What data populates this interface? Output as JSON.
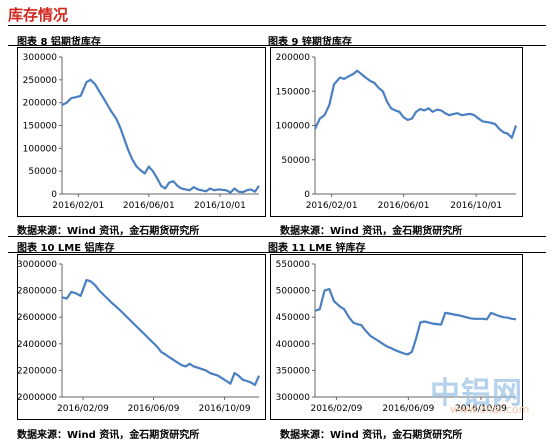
{
  "section_title": "库存情况",
  "figures": [
    {
      "title": "图表 8 铝期货库存",
      "source": "数据来源：Wind 资讯，金石期货研究所",
      "chart_data": {
        "type": "line",
        "series": [
          {
            "x": [
              "2016-01-04",
              "2016-01-12",
              "2016-01-20",
              "2016-01-28",
              "2016-02-05",
              "2016-02-15",
              "2016-02-22",
              "2016-03-01",
              "2016-03-08",
              "2016-03-15",
              "2016-03-22",
              "2016-03-29",
              "2016-04-06",
              "2016-04-13",
              "2016-04-20",
              "2016-04-27",
              "2016-05-04",
              "2016-05-11",
              "2016-05-18",
              "2016-05-25",
              "2016-06-01",
              "2016-06-08",
              "2016-06-15",
              "2016-06-22",
              "2016-06-29",
              "2016-07-06",
              "2016-07-13",
              "2016-07-20",
              "2016-07-27",
              "2016-08-03",
              "2016-08-10",
              "2016-08-17",
              "2016-08-24",
              "2016-08-31",
              "2016-09-07",
              "2016-09-14",
              "2016-09-21",
              "2016-09-28",
              "2016-10-05",
              "2016-10-12",
              "2016-10-19",
              "2016-10-26",
              "2016-11-02",
              "2016-11-09",
              "2016-11-16",
              "2016-11-23",
              "2016-11-30",
              "2016-12-07"
            ],
            "values": [
              195000,
              200000,
              210000,
              212000,
              215000,
              245000,
              250000,
              240000,
              225000,
              210000,
              195000,
              180000,
              165000,
              145000,
              120000,
              95000,
              75000,
              60000,
              52000,
              45000,
              60000,
              50000,
              35000,
              18000,
              12000,
              25000,
              28000,
              18000,
              12000,
              10000,
              8000,
              15000,
              10000,
              8000,
              6000,
              12000,
              8000,
              10000,
              9000,
              8000,
              3000,
              12000,
              5000,
              4000,
              8000,
              10000,
              5000,
              18000
            ]
          }
        ],
        "ylim": [
          0,
          300000
        ],
        "yticks": [
          "0",
          "50000",
          "100000",
          "150000",
          "200000",
          "250000",
          "300000"
        ],
        "xtick_labels": [
          "2016/02/01",
          "2016/06/01",
          "2016/10/01"
        ],
        "xtick_dates": [
          "2016-02-01",
          "2016-06-01",
          "2016-10-01"
        ],
        "xlim": [
          "2016-01-04",
          "2016-12-07"
        ],
        "color": "#4a7fc1"
      }
    },
    {
      "title": "图表 9 锌期货库存",
      "source": "数据来源：Wind 资讯，金石期货研究所",
      "chart_data": {
        "type": "line",
        "series": [
          {
            "x": [
              "2016-01-04",
              "2016-01-12",
              "2016-01-20",
              "2016-01-28",
              "2016-02-05",
              "2016-02-15",
              "2016-02-22",
              "2016-03-01",
              "2016-03-08",
              "2016-03-15",
              "2016-03-22",
              "2016-03-29",
              "2016-04-06",
              "2016-04-13",
              "2016-04-20",
              "2016-04-27",
              "2016-05-04",
              "2016-05-11",
              "2016-05-18",
              "2016-05-25",
              "2016-06-01",
              "2016-06-08",
              "2016-06-15",
              "2016-06-22",
              "2016-06-29",
              "2016-07-06",
              "2016-07-13",
              "2016-07-20",
              "2016-07-27",
              "2016-08-03",
              "2016-08-10",
              "2016-08-17",
              "2016-08-24",
              "2016-08-31",
              "2016-09-07",
              "2016-09-14",
              "2016-09-21",
              "2016-09-28",
              "2016-10-05",
              "2016-10-12",
              "2016-10-19",
              "2016-10-26",
              "2016-11-02",
              "2016-11-09",
              "2016-11-16",
              "2016-11-23",
              "2016-11-30",
              "2016-12-07"
            ],
            "values": [
              95000,
              110000,
              115000,
              130000,
              160000,
              170000,
              168000,
              172000,
              175000,
              180000,
              175000,
              170000,
              165000,
              162000,
              155000,
              150000,
              135000,
              125000,
              122000,
              120000,
              112000,
              108000,
              110000,
              120000,
              124000,
              122000,
              125000,
              120000,
              123000,
              122000,
              118000,
              115000,
              117000,
              118000,
              115000,
              116000,
              117000,
              115000,
              110000,
              106000,
              105000,
              104000,
              102000,
              95000,
              90000,
              88000,
              82000,
              100000
            ]
          }
        ],
        "ylim": [
          0,
          200000
        ],
        "yticks": [
          "0",
          "50000",
          "100000",
          "150000",
          "200000"
        ],
        "xtick_labels": [
          "2016/02/01",
          "2016/06/01",
          "2016/10/01"
        ],
        "xtick_dates": [
          "2016-02-01",
          "2016-06-01",
          "2016-10-01"
        ],
        "xlim": [
          "2016-01-04",
          "2016-12-07"
        ],
        "color": "#4a7fc1"
      }
    },
    {
      "title": "图表 10 LME 铝库存",
      "source": "数据来源：Wind 资讯，金石期货研究所",
      "chart_data": {
        "type": "line",
        "series": [
          {
            "x": [
              "2016-01-04",
              "2016-01-12",
              "2016-01-20",
              "2016-01-28",
              "2016-02-05",
              "2016-02-15",
              "2016-02-22",
              "2016-03-01",
              "2016-03-08",
              "2016-03-15",
              "2016-03-22",
              "2016-03-29",
              "2016-04-06",
              "2016-04-13",
              "2016-04-20",
              "2016-04-27",
              "2016-05-04",
              "2016-05-11",
              "2016-05-18",
              "2016-05-25",
              "2016-06-01",
              "2016-06-08",
              "2016-06-15",
              "2016-06-22",
              "2016-06-29",
              "2016-07-06",
              "2016-07-13",
              "2016-07-20",
              "2016-07-27",
              "2016-08-03",
              "2016-08-10",
              "2016-08-17",
              "2016-08-24",
              "2016-08-31",
              "2016-09-07",
              "2016-09-14",
              "2016-09-21",
              "2016-09-28",
              "2016-10-05",
              "2016-10-12",
              "2016-10-19",
              "2016-10-26",
              "2016-11-02",
              "2016-11-09",
              "2016-11-16",
              "2016-11-23",
              "2016-11-30",
              "2016-12-07"
            ],
            "values": [
              2750000,
              2740000,
              2790000,
              2780000,
              2760000,
              2880000,
              2870000,
              2840000,
              2800000,
              2770000,
              2740000,
              2710000,
              2680000,
              2650000,
              2620000,
              2590000,
              2560000,
              2530000,
              2500000,
              2470000,
              2440000,
              2410000,
              2380000,
              2340000,
              2320000,
              2300000,
              2280000,
              2260000,
              2240000,
              2230000,
              2250000,
              2230000,
              2220000,
              2210000,
              2200000,
              2180000,
              2170000,
              2160000,
              2140000,
              2120000,
              2100000,
              2180000,
              2160000,
              2130000,
              2120000,
              2110000,
              2090000,
              2160000
            ]
          }
        ],
        "ylim": [
          2000000,
          3000000
        ],
        "yticks": [
          "2000000",
          "2200000",
          "2400000",
          "2600000",
          "2800000",
          "3000000"
        ],
        "xtick_labels": [
          "2016/02/09",
          "2016/06/09",
          "2016/10/09"
        ],
        "xtick_dates": [
          "2016-02-09",
          "2016-06-09",
          "2016-10-09"
        ],
        "xlim": [
          "2016-01-04",
          "2016-12-07"
        ],
        "color": "#4a7fc1"
      }
    },
    {
      "title": "图表 11 LME 锌库存",
      "source": "数据来源：Wind 资讯，金石期货研究所",
      "chart_data": {
        "type": "line",
        "series": [
          {
            "x": [
              "2016-01-04",
              "2016-01-12",
              "2016-01-20",
              "2016-01-28",
              "2016-02-05",
              "2016-02-15",
              "2016-02-22",
              "2016-03-01",
              "2016-03-08",
              "2016-03-15",
              "2016-03-22",
              "2016-03-29",
              "2016-04-06",
              "2016-04-13",
              "2016-04-20",
              "2016-04-27",
              "2016-05-04",
              "2016-05-11",
              "2016-05-18",
              "2016-05-25",
              "2016-06-01",
              "2016-06-08",
              "2016-06-15",
              "2016-06-22",
              "2016-06-29",
              "2016-07-06",
              "2016-07-13",
              "2016-07-20",
              "2016-07-27",
              "2016-08-03",
              "2016-08-10",
              "2016-08-17",
              "2016-08-24",
              "2016-08-31",
              "2016-09-07",
              "2016-09-14",
              "2016-09-21",
              "2016-09-28",
              "2016-10-05",
              "2016-10-12",
              "2016-10-19",
              "2016-10-26",
              "2016-11-02",
              "2016-11-09",
              "2016-11-16",
              "2016-11-23",
              "2016-11-30",
              "2016-12-07"
            ],
            "values": [
              462000,
              465000,
              500000,
              503000,
              480000,
              470000,
              465000,
              450000,
              440000,
              437000,
              435000,
              425000,
              415000,
              410000,
              405000,
              400000,
              395000,
              392000,
              388000,
              385000,
              382000,
              380000,
              385000,
              410000,
              440000,
              442000,
              440000,
              438000,
              437000,
              436000,
              458000,
              457000,
              455000,
              454000,
              452000,
              450000,
              448000,
              447000,
              447000,
              447000,
              446000,
              458000,
              455000,
              452000,
              450000,
              449000,
              447000,
              446000
            ]
          }
        ],
        "ylim": [
          300000,
          550000
        ],
        "yticks": [
          "300000",
          "350000",
          "400000",
          "450000",
          "500000",
          "550000"
        ],
        "xtick_labels": [
          "2016/02/09",
          "2016/06/09",
          "2016/10/09"
        ],
        "xtick_dates": [
          "2016-02-09",
          "2016-06-09",
          "2016-10-09"
        ],
        "xlim": [
          "2016-01-04",
          "2016-12-07"
        ],
        "color": "#4a7fc1"
      }
    }
  ],
  "watermark": {
    "text": "中铝网",
    "url": "www.cnal.com"
  }
}
